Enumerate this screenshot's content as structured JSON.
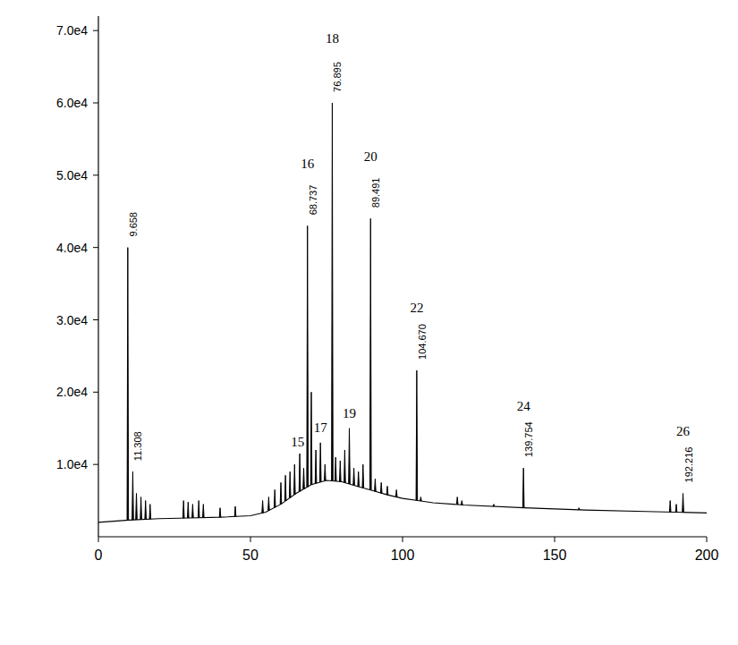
{
  "chart_data": {
    "type": "line",
    "xlim": [
      0,
      200
    ],
    "xticks": [
      0,
      50,
      100,
      150,
      200
    ],
    "ylim": [
      0,
      72000
    ],
    "yticks": [
      {
        "value": 10000,
        "label": "1.0e4"
      },
      {
        "value": 20000,
        "label": "2.0e4"
      },
      {
        "value": 30000,
        "label": "3.0e4"
      },
      {
        "value": 40000,
        "label": "4.0e4"
      },
      {
        "value": 50000,
        "label": "5.0e4"
      },
      {
        "value": 60000,
        "label": "6.0e4"
      },
      {
        "value": 70000,
        "label": "7.0e4"
      }
    ],
    "grid": false,
    "series": [
      {
        "type": "line",
        "color": "#000000",
        "x": [
          0,
          10,
          20,
          30,
          40,
          50,
          55,
          60,
          65,
          70,
          75,
          80,
          85,
          90,
          95,
          100,
          105,
          110,
          120,
          140,
          160,
          180,
          200
        ],
        "values": [
          2000,
          2300,
          2500,
          2600,
          2700,
          2900,
          3400,
          4500,
          6000,
          7200,
          7800,
          7600,
          7000,
          6400,
          5800,
          5300,
          5000,
          4700,
          4400,
          4000,
          3700,
          3500,
          3300
        ]
      },
      {
        "type": "stick",
        "color": "#000000",
        "x": [
          9.658,
          11.308,
          12.5,
          14,
          15.5,
          17,
          28,
          29.5,
          31,
          33,
          34.5,
          40,
          45,
          54,
          56,
          58,
          60,
          61.5,
          63,
          64.5,
          66.2,
          67.5,
          68.737,
          70,
          71.5,
          73,
          74.5,
          76.895,
          78,
          79.5,
          81,
          82.5,
          84,
          85.5,
          87,
          89.491,
          91,
          93,
          95,
          98,
          104.67,
          106,
          118,
          119.5,
          130,
          139.754,
          158,
          188,
          190,
          192.216
        ],
        "values": [
          40000,
          9000,
          6000,
          5500,
          5000,
          4500,
          5000,
          4800,
          4500,
          5000,
          4500,
          4000,
          4200,
          5000,
          5500,
          6500,
          7500,
          8500,
          9000,
          10000,
          11500,
          9500,
          43000,
          20000,
          12000,
          13000,
          10000,
          60000,
          11000,
          10500,
          12000,
          15000,
          9500,
          9000,
          10000,
          44000,
          8000,
          7500,
          7000,
          6500,
          23000,
          5500,
          5500,
          5000,
          4500,
          9500,
          4000,
          5000,
          4500,
          6000
        ]
      }
    ],
    "annotations": [
      {
        "x": 65.5,
        "y": 12500,
        "text": "15"
      },
      {
        "x": 68.737,
        "y": 51000,
        "text": "16"
      },
      {
        "x": 73,
        "y": 14500,
        "text": "17"
      },
      {
        "x": 76.895,
        "y": 68300,
        "text": "18"
      },
      {
        "x": 82.5,
        "y": 16500,
        "text": "19"
      },
      {
        "x": 89.491,
        "y": 52000,
        "text": "20"
      },
      {
        "x": 104.67,
        "y": 31000,
        "text": "22"
      },
      {
        "x": 139.754,
        "y": 17500,
        "text": "24"
      },
      {
        "x": 192.216,
        "y": 14000,
        "text": "26"
      }
    ],
    "rt_labels": [
      {
        "x": 9.658,
        "y": 41500,
        "text": "9.658"
      },
      {
        "x": 11.308,
        "y": 10500,
        "text": "11.308"
      },
      {
        "x": 68.737,
        "y": 44500,
        "text": "68.737"
      },
      {
        "x": 76.895,
        "y": 61500,
        "text": "76.895"
      },
      {
        "x": 89.491,
        "y": 45500,
        "text": "89.491"
      },
      {
        "x": 104.67,
        "y": 24500,
        "text": "104.670"
      },
      {
        "x": 139.754,
        "y": 11000,
        "text": "139.754"
      },
      {
        "x": 192.216,
        "y": 7500,
        "text": "192.216"
      }
    ]
  }
}
